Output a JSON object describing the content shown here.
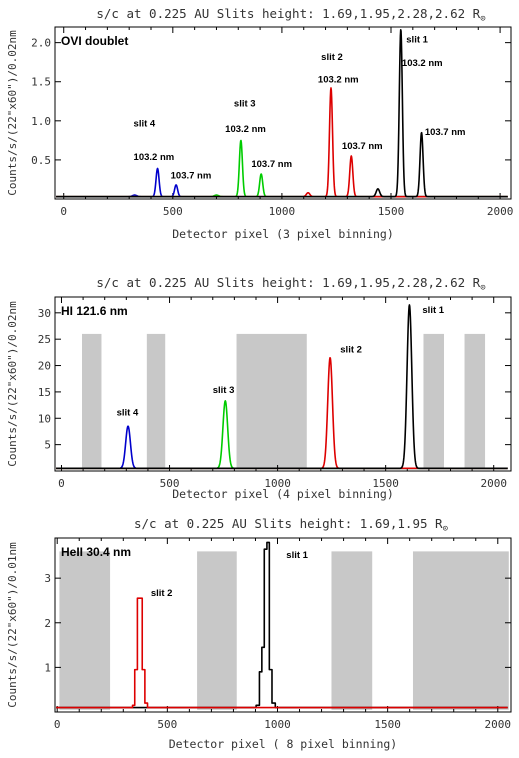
{
  "chart_data": [
    {
      "type": "line",
      "title": "s/c at 0.225 AU   Slits height: 1.69,1.95,2.28,2.62 R",
      "title_symbol": "⊙",
      "panel_label": "OVI doublet",
      "xlabel": "Detector pixel (3 pixel binning)",
      "ylabel": "Counts/s/(22\"x60\")/0.02nm",
      "xlim": [
        -40,
        2050
      ],
      "ylim": [
        0,
        2.2
      ],
      "xticks": [
        0,
        500,
        1000,
        1500,
        2000
      ],
      "yticks": [
        0.5,
        1.0,
        1.5,
        2.0
      ],
      "ytick_labels": [
        "0.5",
        "1.0",
        "1.5",
        "2.0"
      ],
      "baseline": 0.03,
      "grey_bands": [],
      "series": [
        {
          "color": "#0000cc",
          "peaks": [
            {
              "x": 430,
              "h": 0.36,
              "w": 7
            },
            {
              "x": 515,
              "h": 0.15,
              "w": 7
            },
            {
              "x": 325,
              "h": 0.02,
              "w": 10
            }
          ]
        },
        {
          "color": "#00cc00",
          "peaks": [
            {
              "x": 812,
              "h": 0.72,
              "w": 7
            },
            {
              "x": 905,
              "h": 0.29,
              "w": 7
            },
            {
              "x": 700,
              "h": 0.02,
              "w": 10
            }
          ]
        },
        {
          "color": "#dd0000",
          "peaks": [
            {
              "x": 1225,
              "h": 1.39,
              "w": 7
            },
            {
              "x": 1318,
              "h": 0.52,
              "w": 7
            },
            {
              "x": 1120,
              "h": 0.05,
              "w": 8
            }
          ]
        },
        {
          "color": "#000000",
          "peaks": [
            {
              "x": 1545,
              "h": 2.14,
              "w": 7
            },
            {
              "x": 1640,
              "h": 0.82,
              "w": 7
            },
            {
              "x": 1440,
              "h": 0.1,
              "w": 8
            }
          ]
        }
      ],
      "annotations": [
        {
          "text": "slit 4",
          "x": 320,
          "y": 0.93
        },
        {
          "text": "103.2 nm",
          "x": 320,
          "y": 0.5
        },
        {
          "text": "103.7 nm",
          "x": 490,
          "y": 0.26
        },
        {
          "text": "slit 3",
          "x": 780,
          "y": 1.18
        },
        {
          "text": "103.2 nm",
          "x": 740,
          "y": 0.86
        },
        {
          "text": "103.7 nm",
          "x": 860,
          "y": 0.41
        },
        {
          "text": "slit 2",
          "x": 1180,
          "y": 1.78
        },
        {
          "text": "103.2 nm",
          "x": 1165,
          "y": 1.49
        },
        {
          "text": "103.7 nm",
          "x": 1275,
          "y": 0.64
        },
        {
          "text": "slit 1",
          "x": 1570,
          "y": 2.0
        },
        {
          "text": "103.2 nm",
          "x": 1550,
          "y": 1.7
        },
        {
          "text": "103.7 nm",
          "x": 1655,
          "y": 0.82
        }
      ]
    },
    {
      "type": "line",
      "title": "s/c at 0.225 AU   Slits height: 1.69,1.95,2.28,2.62 R",
      "title_symbol": "⊙",
      "panel_label": "HI 121.6 nm",
      "xlabel": "Detector pixel (4 pixel binning)",
      "ylabel": "Counts/s/(22\"x60\")/0.02nm",
      "xlim": [
        -30,
        2080
      ],
      "ylim": [
        0,
        33
      ],
      "xticks": [
        0,
        500,
        1000,
        1500,
        2000
      ],
      "yticks": [
        5,
        10,
        15,
        20,
        25,
        30
      ],
      "ytick_labels": [
        "5",
        "10",
        "15",
        "20",
        "25",
        "30"
      ],
      "baseline": 0.5,
      "grey_bands": [
        [
          95,
          185
        ],
        [
          395,
          480
        ],
        [
          810,
          1135
        ],
        [
          1675,
          1770
        ],
        [
          1865,
          1960
        ]
      ],
      "series": [
        {
          "color": "#0000cc",
          "peaks": [
            {
              "x": 308,
              "h": 8.0,
              "w": 11
            }
          ]
        },
        {
          "color": "#00cc00",
          "peaks": [
            {
              "x": 758,
              "h": 12.8,
              "w": 11
            }
          ]
        },
        {
          "color": "#dd0000",
          "peaks": [
            {
              "x": 1243,
              "h": 21.0,
              "w": 11
            }
          ]
        },
        {
          "color": "#000000",
          "peaks": [
            {
              "x": 1610,
              "h": 31.0,
              "w": 11
            }
          ]
        }
      ],
      "annotations": [
        {
          "text": "slit 4",
          "x": 255,
          "y": 10.5
        },
        {
          "text": "slit 3",
          "x": 700,
          "y": 14.8
        },
        {
          "text": "slit 2",
          "x": 1290,
          "y": 22.5
        },
        {
          "text": "slit 1",
          "x": 1670,
          "y": 30.0
        }
      ]
    },
    {
      "type": "line",
      "title": "s/c at 0.225 AU   Slits height: 1.69,1.95 R",
      "title_symbol": "⊙",
      "panel_label": "HeII 30.4 nm",
      "xlabel": "Detector pixel ( 8 pixel binning)",
      "ylabel": "Counts/s/(22\"x60\")/0.01nm",
      "xlim": [
        -10,
        2060
      ],
      "ylim": [
        0,
        3.9
      ],
      "xticks": [
        0,
        500,
        1000,
        1500,
        2000
      ],
      "yticks": [
        1,
        2,
        3
      ],
      "ytick_labels": [
        "1",
        "2",
        "3"
      ],
      "baseline": 0.1,
      "grey_bands": [
        [
          10,
          240
        ],
        [
          635,
          815
        ],
        [
          1245,
          1430
        ],
        [
          1615,
          2050
        ]
      ],
      "series": [
        {
          "color": "#000000",
          "style": "step",
          "bins": [
            [
              880,
              0.1
            ],
            [
              903,
              0.15
            ],
            [
              918,
              0.9
            ],
            [
              929,
              1.45
            ],
            [
              940,
              3.65
            ],
            [
              952,
              3.8
            ],
            [
              963,
              0.95
            ],
            [
              975,
              0.2
            ],
            [
              990,
              0.1
            ]
          ]
        },
        {
          "color": "#dd0000",
          "style": "step",
          "bins": [
            [
              320,
              0.1
            ],
            [
              342,
              0.15
            ],
            [
              352,
              0.95
            ],
            [
              364,
              2.55
            ],
            [
              386,
              0.95
            ],
            [
              398,
              0.2
            ],
            [
              410,
              0.1
            ]
          ]
        }
      ],
      "annotations": [
        {
          "text": "slit 2",
          "x": 425,
          "y": 2.6
        },
        {
          "text": "slit 1",
          "x": 1040,
          "y": 3.45
        }
      ]
    }
  ]
}
